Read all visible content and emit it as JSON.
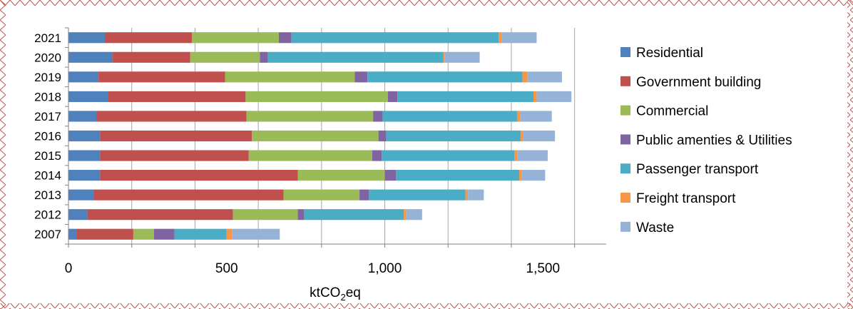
{
  "chart_data": {
    "type": "bar",
    "orientation": "horizontal",
    "stacked": true,
    "categories": [
      "2021",
      "2020",
      "2019",
      "2018",
      "2017",
      "2016",
      "2015",
      "2014",
      "2013",
      "2012",
      "2007"
    ],
    "series": [
      {
        "name": "Residential",
        "color": "#4f81bd",
        "values": [
          115,
          140,
          95,
          125,
          88,
          100,
          100,
          100,
          80,
          60,
          25
        ]
      },
      {
        "name": "Government building",
        "color": "#c0504d",
        "values": [
          275,
          245,
          400,
          435,
          475,
          480,
          470,
          625,
          600,
          460,
          180
        ]
      },
      {
        "name": "Commercial",
        "color": "#9bbb59",
        "values": [
          275,
          220,
          410,
          450,
          400,
          400,
          390,
          275,
          240,
          205,
          65
        ]
      },
      {
        "name": "Public amenties & Utilities",
        "color": "#8064a2",
        "values": [
          40,
          25,
          40,
          30,
          30,
          25,
          30,
          35,
          30,
          20,
          65
        ]
      },
      {
        "name": "Passenger transport",
        "color": "#4bacc6",
        "values": [
          655,
          555,
          490,
          430,
          425,
          425,
          420,
          390,
          305,
          315,
          165
        ]
      },
      {
        "name": "Freight transport",
        "color": "#f79646",
        "values": [
          10,
          5,
          15,
          10,
          10,
          8,
          10,
          7,
          8,
          8,
          18
        ]
      },
      {
        "name": "Waste",
        "color": "#95b3d7",
        "values": [
          110,
          110,
          110,
          110,
          100,
          100,
          95,
          75,
          50,
          50,
          150
        ]
      }
    ],
    "xlim": [
      0,
      1700
    ],
    "xticks": [
      "0",
      "500",
      "1,000",
      "1,500"
    ],
    "xlabel": "ktCO2eq",
    "grid": "vertical",
    "legend": "right"
  }
}
